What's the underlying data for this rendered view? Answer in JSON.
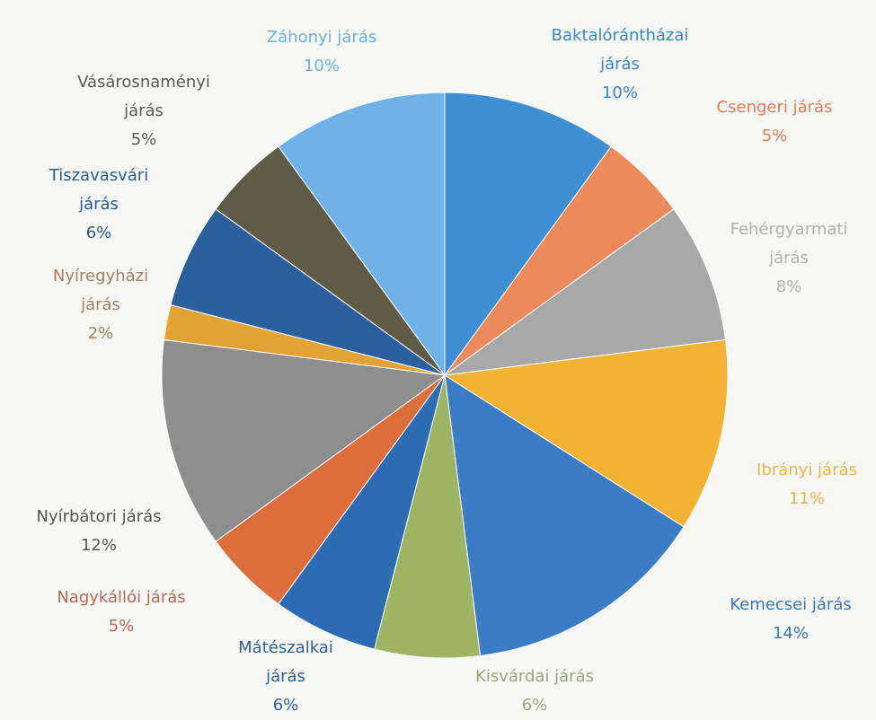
{
  "chart_data": {
    "type": "pie",
    "categories": [
      "Baktalórántházai járás",
      "Csengeri járás",
      "Fehérgyarmati járás",
      "Ibrányi járás",
      "Kemecsei járás",
      "Kisvárdai járás",
      "Mátészalkai járás",
      "Nagykállói járás",
      "Nyírbátori járás",
      "Nyíregyházi járás",
      "Tiszavasvári járás",
      "Vásárosnaményi járás",
      "Záhonyi járás"
    ],
    "values": [
      10,
      5,
      8,
      11,
      14,
      6,
      6,
      5,
      12,
      2,
      6,
      5,
      10
    ],
    "value_labels": [
      "10%",
      "5%",
      "8%",
      "11%",
      "14%",
      "6%",
      "6%",
      "5%",
      "12%",
      "2%",
      "6%",
      "5%",
      "10%"
    ],
    "colors": [
      "#3f8fd4",
      "#ec8a5c",
      "#a8a8a8",
      "#f2b232",
      "#3b7cc6",
      "#9db463",
      "#2c6cb3",
      "#dc6e3e",
      "#8e8e8e",
      "#e3a234",
      "#2b5f9e",
      "#605b47",
      "#6fb2e8"
    ]
  }
}
